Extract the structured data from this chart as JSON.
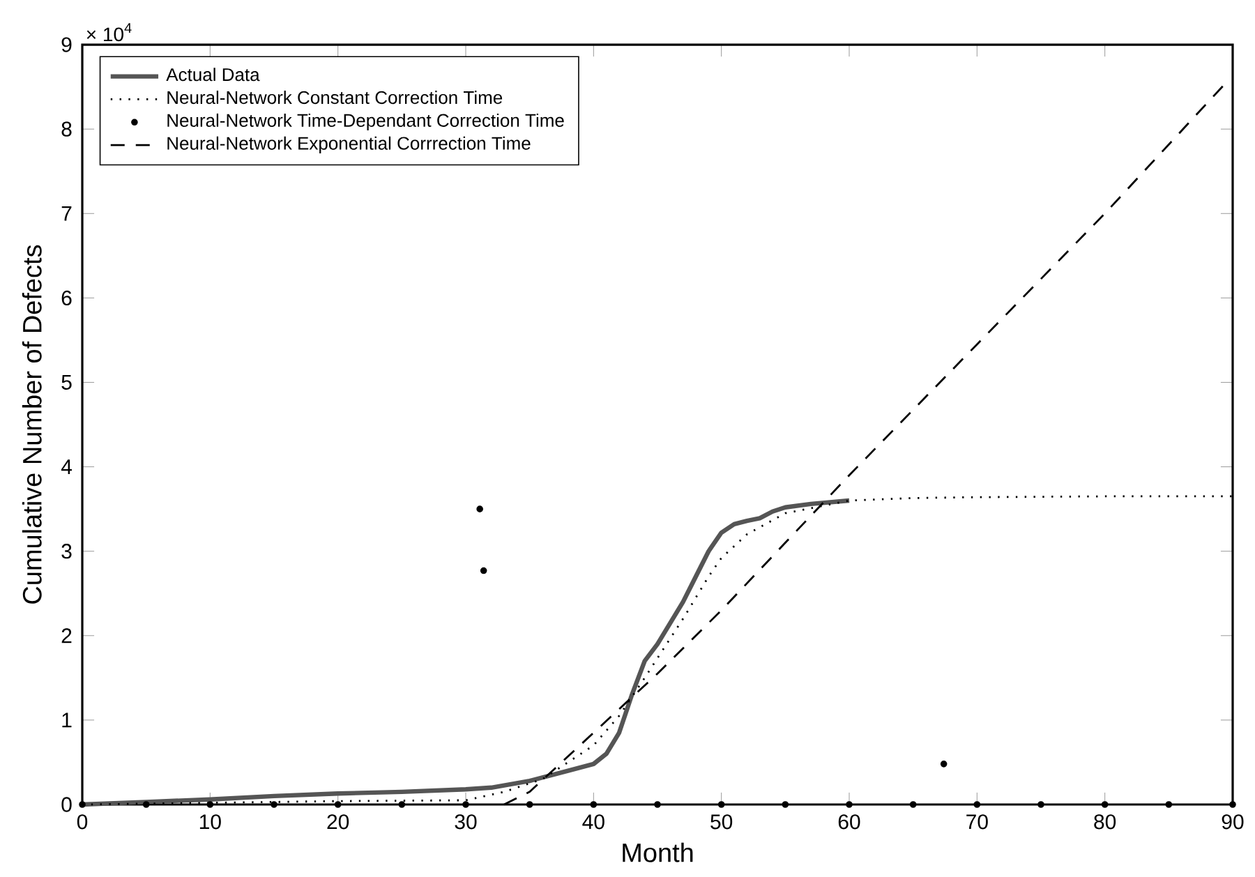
{
  "chart_data": {
    "type": "line",
    "xlabel": "Month",
    "ylabel": "Cumulative Number of Defects",
    "annotations": [
      "× 10$^{4}$"
    ],
    "xlim": [
      0,
      90
    ],
    "ylim": [
      0,
      9
    ],
    "xticks": [
      0,
      10,
      20,
      30,
      40,
      50,
      60,
      70,
      80,
      90
    ],
    "yticks": [
      0,
      1,
      2,
      3,
      4,
      5,
      6,
      7,
      8,
      9
    ],
    "legend": "top left",
    "series": [
      {
        "name": "Actual Data",
        "color": "#555555",
        "line_style": "solid",
        "x": [
          0,
          5,
          10,
          15,
          20,
          25,
          30,
          32,
          35,
          38,
          40,
          41,
          42,
          43,
          44,
          45,
          46,
          47,
          48,
          49,
          50,
          51,
          52,
          53,
          54,
          55,
          57,
          60
        ],
        "values": [
          0,
          0.03,
          0.06,
          0.1,
          0.13,
          0.15,
          0.18,
          0.2,
          0.28,
          0.4,
          0.48,
          0.6,
          0.85,
          1.3,
          1.7,
          1.9,
          2.15,
          2.4,
          2.7,
          3.0,
          3.22,
          3.32,
          3.36,
          3.39,
          3.47,
          3.52,
          3.56,
          3.6
        ]
      },
      {
        "name": "Neural-Network Constant Correction Time",
        "color": "#000000",
        "line_style": "dotted",
        "x": [
          0,
          10,
          20,
          30,
          33,
          36,
          38,
          40,
          42,
          44,
          47,
          49,
          50,
          52,
          55,
          60,
          65,
          70,
          80,
          90
        ],
        "values": [
          0,
          0.02,
          0.04,
          0.05,
          0.15,
          0.3,
          0.5,
          0.7,
          1.05,
          1.5,
          2.2,
          2.7,
          2.92,
          3.2,
          3.45,
          3.6,
          3.63,
          3.64,
          3.65,
          3.65
        ]
      },
      {
        "name": "Neural-Network Time-Dependant Correction Time",
        "type": "scatter",
        "color": "#000000",
        "x": [
          0,
          5,
          10,
          15,
          20,
          25,
          30,
          31.1,
          31.4,
          35,
          40,
          45,
          50,
          55,
          60,
          65,
          67.4,
          70,
          75,
          80,
          85,
          90
        ],
        "values": [
          0,
          0,
          0,
          0,
          0,
          0,
          0,
          3.5,
          2.77,
          0,
          0,
          0,
          0,
          0,
          0,
          0,
          0.48,
          0,
          0,
          0,
          0,
          0
        ]
      },
      {
        "name": "Neural-Network Exponential Corrrection Time",
        "color": "#000000",
        "line_style": "dashed",
        "x": [
          33,
          35,
          40,
          45,
          50,
          55,
          60,
          70,
          80,
          89.3
        ],
        "values": [
          0,
          0.15,
          0.85,
          1.55,
          2.3,
          3.1,
          3.9,
          5.45,
          7.0,
          8.52
        ]
      }
    ]
  }
}
